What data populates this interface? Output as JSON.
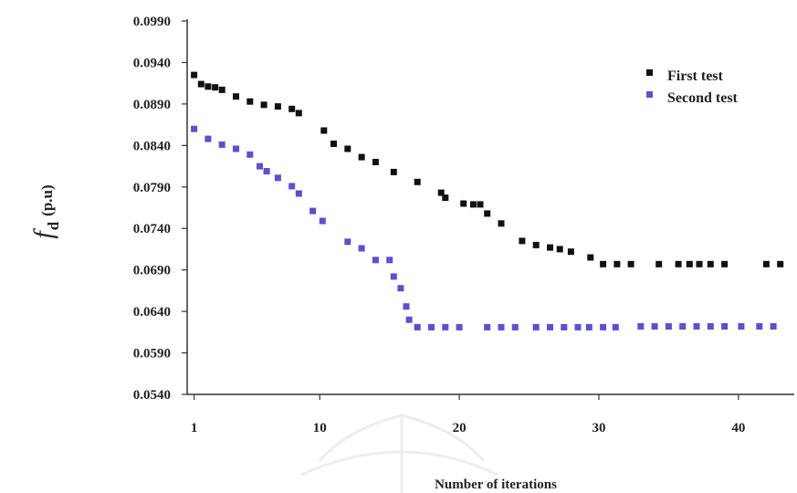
{
  "chart_data": {
    "type": "scatter",
    "title": "",
    "xlabel": "Number of iterations",
    "ylabel": "f",
    "ylabel_subscript": "d",
    "ylabel_unit": "(p.u)",
    "xlim": [
      0.5,
      44
    ],
    "ylim": [
      0.054,
      0.099
    ],
    "x_ticks": [
      1,
      10,
      20,
      30,
      40
    ],
    "x_tick_labels": [
      "1",
      "10",
      "20",
      "30",
      "40"
    ],
    "y_ticks": [
      0.054,
      0.059,
      0.064,
      0.069,
      0.074,
      0.079,
      0.084,
      0.089,
      0.094,
      0.099
    ],
    "y_tick_labels": [
      "0.0540",
      "0.0590",
      "0.0640",
      "0.0690",
      "0.0740",
      "0.0790",
      "0.0840",
      "0.0890",
      "0.0940",
      "0.0990"
    ],
    "grid": false,
    "legend_position": "top-right",
    "colors": {
      "first": "#111111",
      "second": "#5a4fd6",
      "axis": "#333333"
    },
    "series": [
      {
        "name": "First test",
        "x": [
          1,
          1.5,
          2,
          2.5,
          3,
          4,
          5,
          6,
          7,
          8,
          8.5,
          10.3,
          11,
          12,
          13,
          14,
          15.3,
          17,
          18.7,
          19,
          20.3,
          21,
          21.5,
          22,
          23,
          24.5,
          25.5,
          26.5,
          27.2,
          28,
          29.4,
          30.3,
          31.3,
          32.3,
          34.3,
          35.7,
          36.5,
          37.2,
          38,
          39,
          42,
          43
        ],
        "y": [
          0.0925,
          0.0914,
          0.0911,
          0.091,
          0.0907,
          0.0899,
          0.0893,
          0.0889,
          0.0887,
          0.0884,
          0.0879,
          0.0858,
          0.0842,
          0.0836,
          0.0826,
          0.082,
          0.0808,
          0.0796,
          0.0783,
          0.0777,
          0.077,
          0.0769,
          0.0769,
          0.0758,
          0.0746,
          0.0725,
          0.072,
          0.0717,
          0.0715,
          0.0712,
          0.0705,
          0.0697,
          0.0697,
          0.0697,
          0.0697,
          0.0697,
          0.0697,
          0.0697,
          0.0697,
          0.0697,
          0.0697,
          0.0697
        ]
      },
      {
        "name": "Second test",
        "x": [
          1,
          2,
          3,
          4,
          5,
          5.7,
          6.2,
          7,
          8,
          8.5,
          9.5,
          10.2,
          12,
          13,
          14,
          15,
          15.3,
          15.8,
          16.2,
          16.4,
          17,
          18,
          19,
          20,
          22,
          23,
          24,
          25.5,
          26.5,
          27.5,
          28.5,
          29.3,
          30.3,
          31.2,
          33,
          34,
          35,
          36,
          37,
          38,
          39,
          40.2,
          41.5,
          42.5
        ],
        "y": [
          0.086,
          0.0848,
          0.0841,
          0.0836,
          0.0829,
          0.0815,
          0.0809,
          0.0801,
          0.0791,
          0.0782,
          0.0761,
          0.0749,
          0.0724,
          0.0716,
          0.0702,
          0.0702,
          0.0682,
          0.0668,
          0.0646,
          0.063,
          0.0621,
          0.0621,
          0.0621,
          0.0621,
          0.0621,
          0.0621,
          0.0621,
          0.0621,
          0.0621,
          0.0621,
          0.0621,
          0.0621,
          0.0621,
          0.0621,
          0.0622,
          0.0622,
          0.0622,
          0.0622,
          0.0622,
          0.0622,
          0.0622,
          0.0622,
          0.0622,
          0.0622
        ]
      }
    ]
  }
}
